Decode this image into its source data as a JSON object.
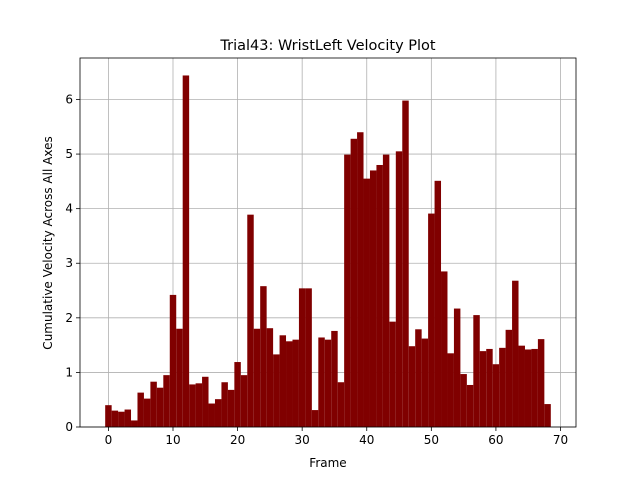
{
  "chart_data": {
    "type": "bar",
    "title": "Trial43: WristLeft Velocity Plot",
    "xlabel": "Frame",
    "ylabel": "Cumulative Velocity Across All Axes",
    "x": [
      0,
      1,
      2,
      3,
      4,
      5,
      6,
      7,
      8,
      9,
      10,
      11,
      12,
      13,
      14,
      15,
      16,
      17,
      18,
      19,
      20,
      21,
      22,
      23,
      24,
      25,
      26,
      27,
      28,
      29,
      30,
      31,
      32,
      33,
      34,
      35,
      36,
      37,
      38,
      39,
      40,
      41,
      42,
      43,
      44,
      45,
      46,
      47,
      48,
      49,
      50,
      51,
      52,
      53,
      54,
      55,
      56,
      57,
      58,
      59,
      60,
      61,
      62,
      63,
      64,
      65,
      66,
      67,
      68
    ],
    "values": [
      0.4,
      0.3,
      0.28,
      0.32,
      0.12,
      0.63,
      0.52,
      0.83,
      0.72,
      0.95,
      2.42,
      1.8,
      6.44,
      0.78,
      0.8,
      0.92,
      0.43,
      0.51,
      0.82,
      0.68,
      1.19,
      0.95,
      3.89,
      1.8,
      2.58,
      1.81,
      1.33,
      1.68,
      1.57,
      1.6,
      2.54,
      2.54,
      0.31,
      1.64,
      1.6,
      1.76,
      0.82,
      4.99,
      5.28,
      5.4,
      4.55,
      4.7,
      4.8,
      4.99,
      1.93,
      5.05,
      5.98,
      1.48,
      1.79,
      1.62,
      3.91,
      4.51,
      2.85,
      1.35,
      2.17,
      0.97,
      0.77,
      2.05,
      1.39,
      1.43,
      1.15,
      1.45,
      1.78,
      2.68,
      1.49,
      1.42,
      1.43,
      1.61,
      0.42
    ],
    "xlim": [
      -4.4,
      72.4
    ],
    "ylim": [
      0,
      6.76
    ],
    "xticks": [
      0,
      10,
      20,
      30,
      40,
      50,
      60,
      70
    ],
    "yticks": [
      0,
      1,
      2,
      3,
      4,
      5,
      6
    ],
    "bar_color": "#800000",
    "grid": true
  }
}
